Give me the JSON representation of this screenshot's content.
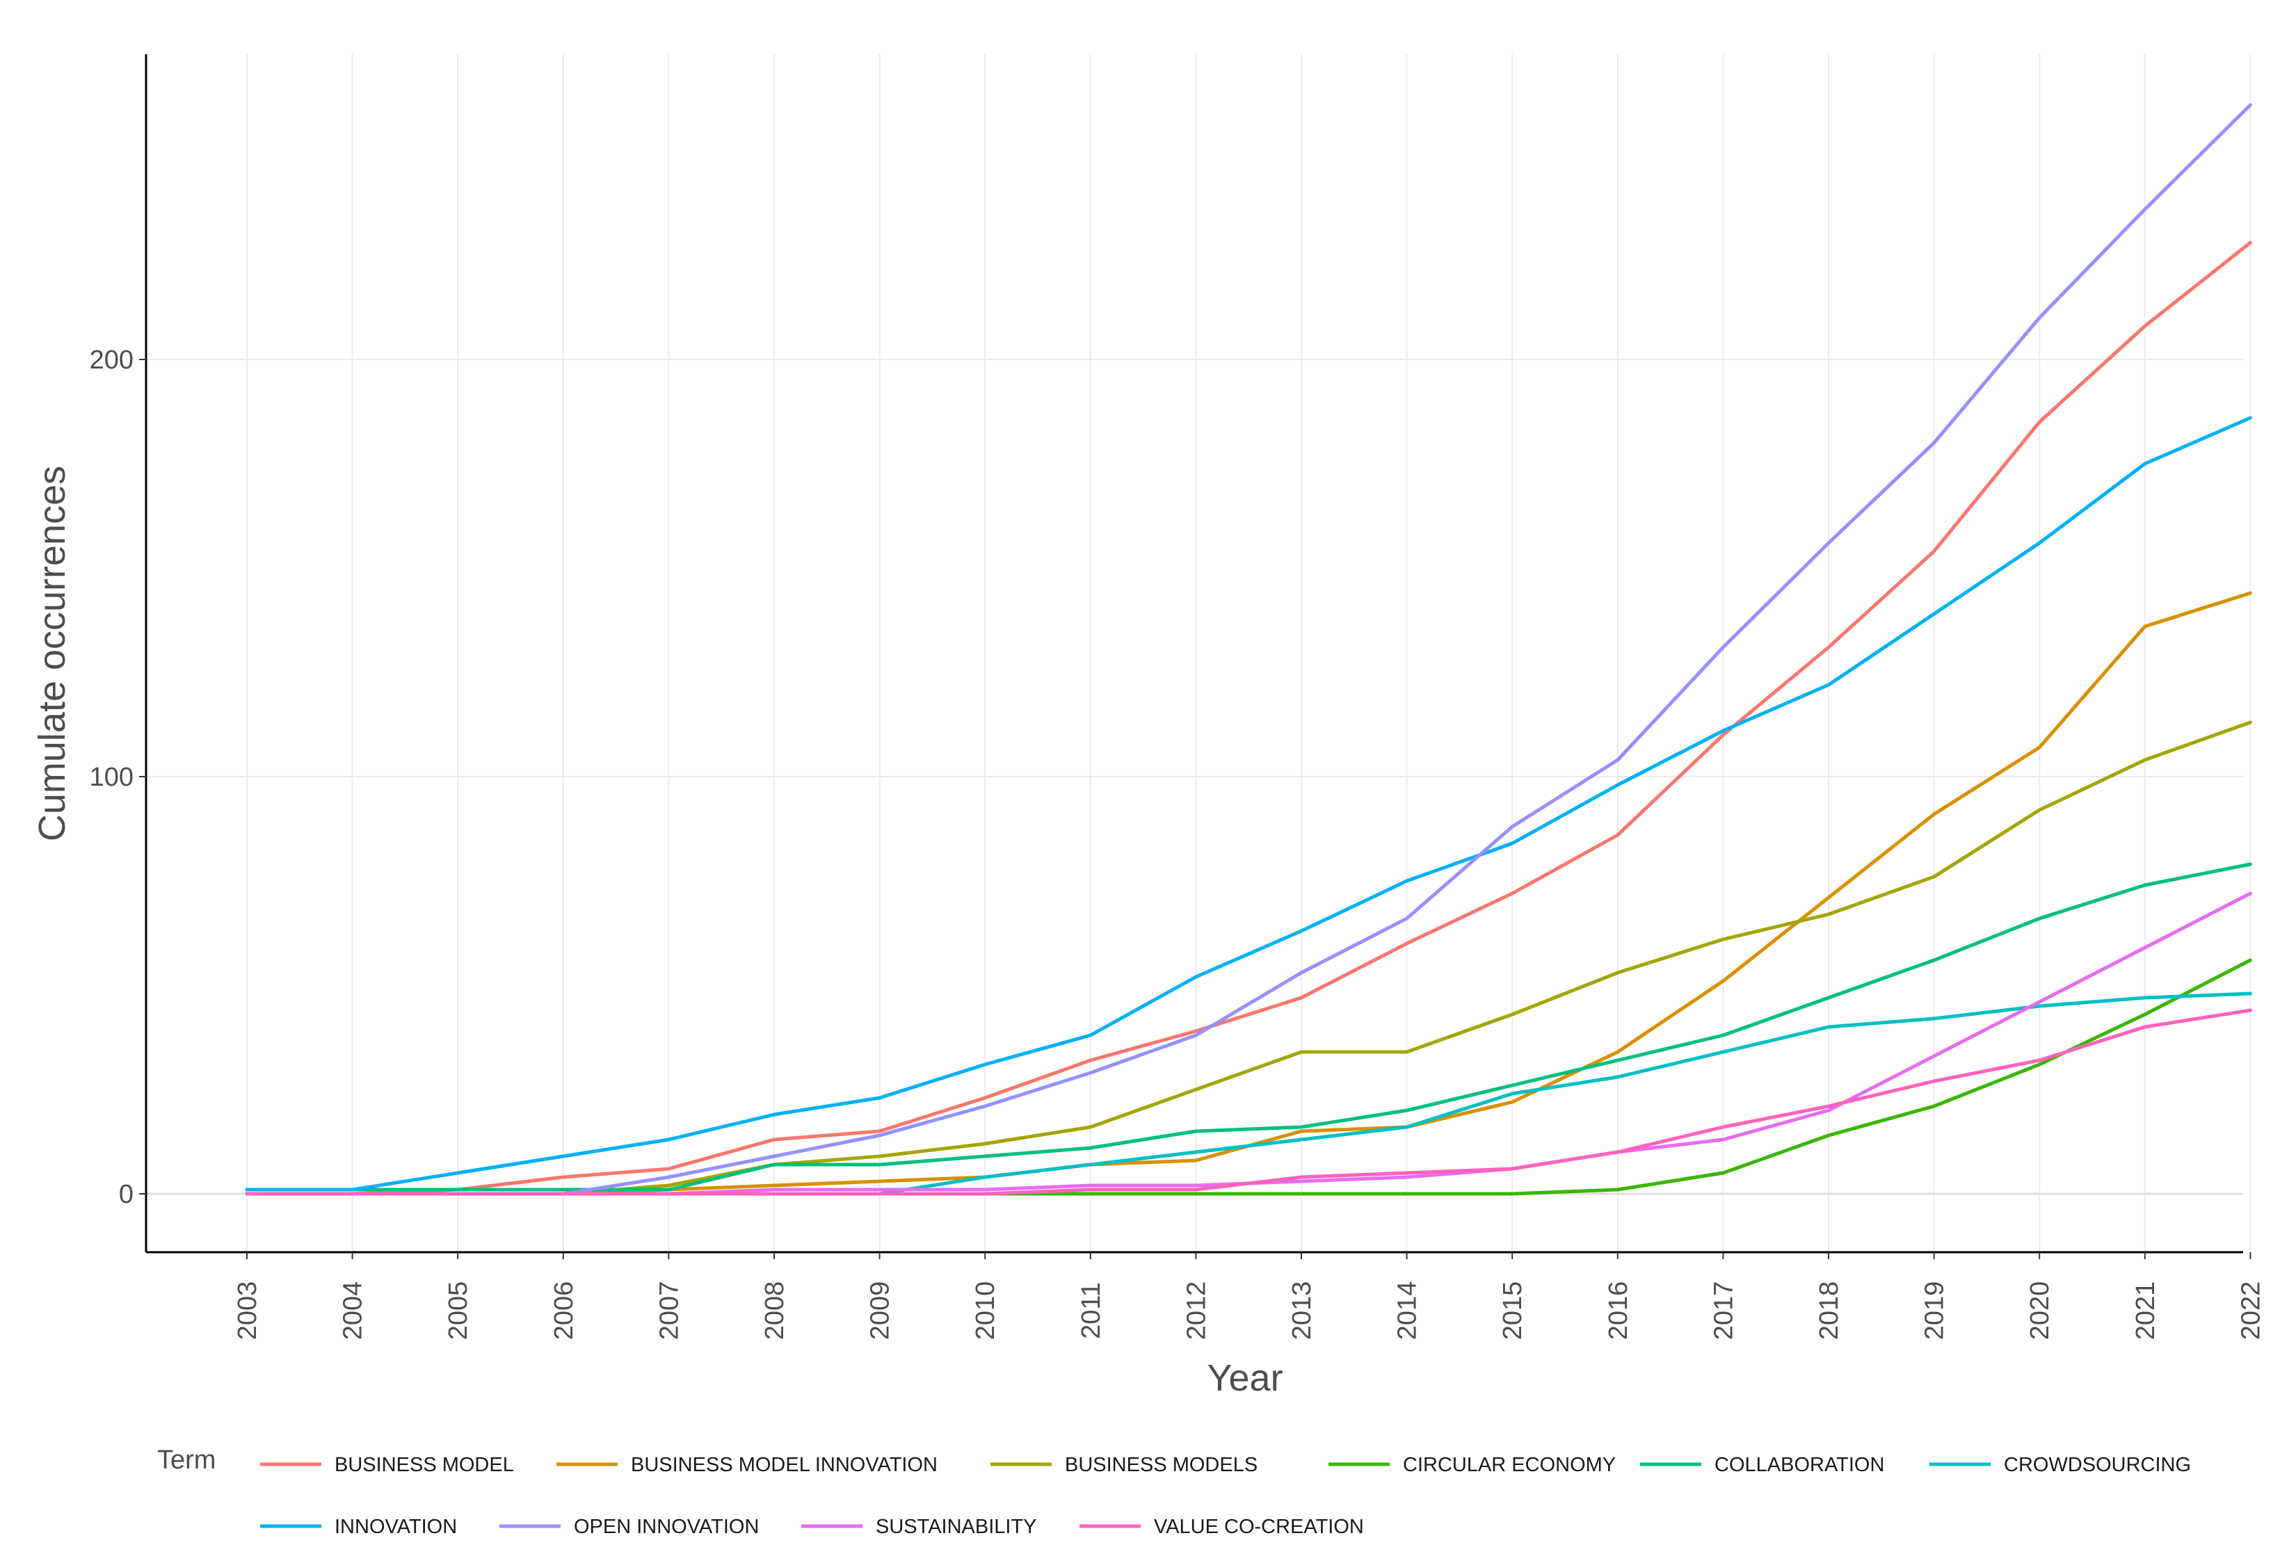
{
  "chart_data": {
    "type": "line",
    "title": "",
    "xlabel": "Year",
    "ylabel": "Cumulate occurrences",
    "x": [
      "2003",
      "2004",
      "2005",
      "2006",
      "2007",
      "2008",
      "2009",
      "2010",
      "2011",
      "2012",
      "2013",
      "2014",
      "2015",
      "2016",
      "2017",
      "2018",
      "2019",
      "2020",
      "2021",
      "2022"
    ],
    "yticks": [
      0,
      100,
      200
    ],
    "ylim": [
      -13,
      275
    ],
    "legend_title": "Term",
    "legend_position": "bottom",
    "grid": true,
    "series": [
      {
        "name": "BUSINESS MODEL",
        "color": "#F8766D",
        "values": [
          0,
          0,
          1,
          4,
          6,
          13,
          15,
          23,
          32,
          39,
          47,
          60,
          72,
          86,
          110,
          131,
          154,
          185,
          208,
          228
        ]
      },
      {
        "name": "BUSINESS MODEL INNOVATION",
        "color": "#D89000",
        "values": [
          0,
          0,
          0,
          0,
          1,
          2,
          3,
          4,
          7,
          8,
          15,
          16,
          22,
          34,
          51,
          71,
          91,
          107,
          136,
          144
        ]
      },
      {
        "name": "BUSINESS MODELS",
        "color": "#A3A500",
        "values": [
          0,
          0,
          0,
          0,
          2,
          7,
          9,
          12,
          16,
          25,
          34,
          34,
          43,
          53,
          61,
          67,
          76,
          92,
          104,
          113
        ]
      },
      {
        "name": "CIRCULAR ECONOMY",
        "color": "#39B600",
        "values": [
          0,
          0,
          0,
          0,
          0,
          0,
          0,
          0,
          0,
          0,
          0,
          0,
          0,
          1,
          5,
          14,
          21,
          31,
          43,
          56
        ]
      },
      {
        "name": "COLLABORATION",
        "color": "#00BF7D",
        "values": [
          1,
          1,
          1,
          1,
          1,
          7,
          7,
          9,
          11,
          15,
          16,
          20,
          26,
          32,
          38,
          47,
          56,
          66,
          74,
          79
        ]
      },
      {
        "name": "CROWDSOURCING",
        "color": "#00BFC4",
        "values": [
          0,
          0,
          0,
          0,
          0,
          0,
          0,
          4,
          7,
          10,
          13,
          16,
          24,
          28,
          34,
          40,
          42,
          45,
          47,
          48
        ]
      },
      {
        "name": "INNOVATION",
        "color": "#00B0F6",
        "values": [
          1,
          1,
          5,
          9,
          13,
          19,
          23,
          31,
          38,
          52,
          63,
          75,
          84,
          98,
          111,
          122,
          139,
          156,
          175,
          186
        ]
      },
      {
        "name": "OPEN INNOVATION",
        "color": "#9590FF",
        "values": [
          0,
          0,
          0,
          0,
          4,
          9,
          14,
          21,
          29,
          38,
          53,
          66,
          88,
          104,
          131,
          156,
          180,
          210,
          236,
          261
        ]
      },
      {
        "name": "SUSTAINABILITY",
        "color": "#E76BF3",
        "values": [
          0,
          0,
          0,
          0,
          0,
          1,
          1,
          1,
          2,
          2,
          3,
          4,
          6,
          10,
          13,
          20,
          33,
          46,
          59,
          72
        ]
      },
      {
        "name": "VALUE CO-CREATION",
        "color": "#FF62BC",
        "values": [
          0,
          0,
          0,
          0,
          0,
          0,
          0,
          0,
          1,
          1,
          4,
          5,
          6,
          10,
          16,
          21,
          27,
          32,
          40,
          44
        ]
      }
    ]
  }
}
